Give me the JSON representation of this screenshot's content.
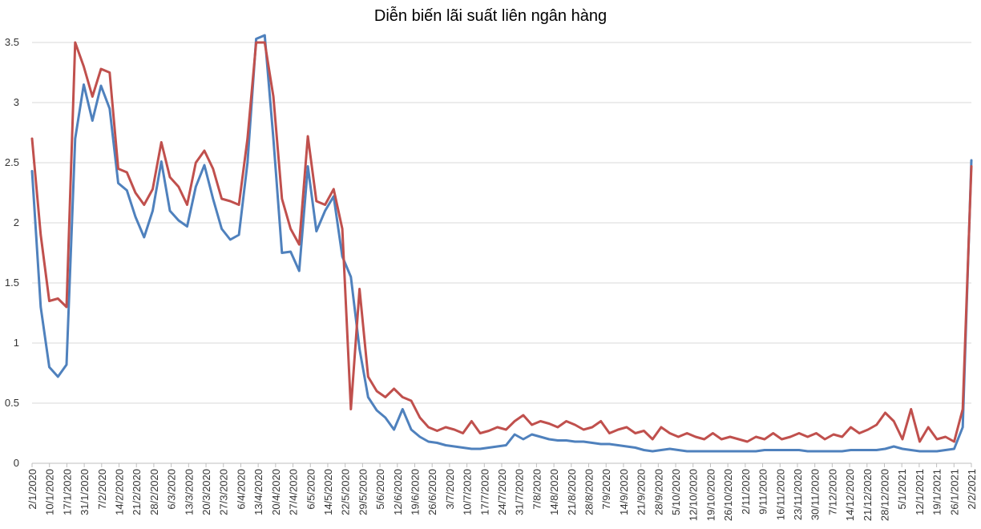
{
  "chart_data": {
    "type": "line",
    "title": "Diễn biến lãi suất liên ngân hàng",
    "xlabel": "",
    "ylabel": "",
    "ylim": [
      0,
      3.5
    ],
    "y_ticks": [
      "0",
      "0.5",
      "1",
      "1.5",
      "2",
      "2.5",
      "3",
      "3.5"
    ],
    "grid": true,
    "legend": "none",
    "x_tick_labels": [
      "2/1/2020",
      "10/1/2020",
      "17/1/2020",
      "31/1/2020",
      "7/2/2020",
      "14/2/2020",
      "21/2/2020",
      "28/2/2020",
      "6/3/2020",
      "13/3/2020",
      "20/3/2020",
      "27/3/2020",
      "6/4/2020",
      "13/4/2020",
      "20/4/2020",
      "27/4/2020",
      "6/5/2020",
      "14/5/2020",
      "22/5/2020",
      "29/5/2020",
      "5/6/2020",
      "12/6/2020",
      "19/6/2020",
      "26/6/2020",
      "3/7/2020",
      "10/7/2020",
      "17/7/2020",
      "24/7/2020",
      "31/7/2020",
      "7/8/2020",
      "14/8/2020",
      "21/8/2020",
      "28/8/2020",
      "7/9/2020",
      "14/9/2020",
      "21/9/2020",
      "28/9/2020",
      "5/10/2020",
      "12/10/2020",
      "19/10/2020",
      "26/10/2020",
      "2/11/2020",
      "9/11/2020",
      "16/11/2020",
      "23/11/2020",
      "30/11/2020",
      "7/12/2020",
      "14/12/2020",
      "21/12/2020",
      "28/12/2020",
      "5/1/2021",
      "12/1/2021",
      "19/1/2021",
      "26/1/2021",
      "2/2/2021"
    ],
    "series": [
      {
        "color": "#4F81BD",
        "values": [
          2.43,
          1.3,
          0.8,
          0.72,
          0.82,
          2.7,
          3.15,
          2.85,
          3.14,
          2.95,
          2.33,
          2.27,
          2.05,
          1.88,
          2.1,
          2.51,
          2.1,
          2.02,
          1.97,
          2.3,
          2.48,
          2.2,
          1.95,
          1.86,
          1.9,
          2.5,
          3.53,
          3.56,
          2.7,
          1.75,
          1.76,
          1.6,
          2.47,
          1.93,
          2.1,
          2.22,
          1.72,
          1.55,
          0.95,
          0.55,
          0.44,
          0.38,
          0.28,
          0.45,
          0.28,
          0.22,
          0.18,
          0.17,
          0.15,
          0.14,
          0.13,
          0.12,
          0.12,
          0.13,
          0.14,
          0.15,
          0.24,
          0.2,
          0.24,
          0.22,
          0.2,
          0.19,
          0.19,
          0.18,
          0.18,
          0.17,
          0.16,
          0.16,
          0.15,
          0.14,
          0.13,
          0.11,
          0.1,
          0.11,
          0.12,
          0.11,
          0.1,
          0.1,
          0.1,
          0.1,
          0.1,
          0.1,
          0.1,
          0.1,
          0.1,
          0.11,
          0.11,
          0.11,
          0.11,
          0.11,
          0.1,
          0.1,
          0.1,
          0.1,
          0.1,
          0.11,
          0.11,
          0.11,
          0.11,
          0.12,
          0.14,
          0.12,
          0.11,
          0.1,
          0.1,
          0.1,
          0.11,
          0.12,
          0.3,
          2.52
        ]
      },
      {
        "color": "#C0504D",
        "values": [
          2.7,
          1.9,
          1.35,
          1.37,
          1.3,
          3.5,
          3.3,
          3.05,
          3.28,
          3.25,
          2.45,
          2.42,
          2.25,
          2.15,
          2.28,
          2.67,
          2.38,
          2.3,
          2.15,
          2.5,
          2.6,
          2.45,
          2.2,
          2.18,
          2.15,
          2.7,
          3.5,
          3.5,
          3.05,
          2.2,
          1.95,
          1.82,
          2.72,
          2.18,
          2.15,
          2.28,
          1.95,
          0.45,
          1.45,
          0.72,
          0.6,
          0.55,
          0.62,
          0.55,
          0.52,
          0.38,
          0.3,
          0.27,
          0.3,
          0.28,
          0.25,
          0.35,
          0.25,
          0.27,
          0.3,
          0.28,
          0.35,
          0.4,
          0.32,
          0.35,
          0.33,
          0.3,
          0.35,
          0.32,
          0.28,
          0.3,
          0.35,
          0.25,
          0.28,
          0.3,
          0.25,
          0.27,
          0.2,
          0.3,
          0.25,
          0.22,
          0.25,
          0.22,
          0.2,
          0.25,
          0.2,
          0.22,
          0.2,
          0.18,
          0.22,
          0.2,
          0.25,
          0.2,
          0.22,
          0.25,
          0.22,
          0.25,
          0.2,
          0.24,
          0.22,
          0.3,
          0.25,
          0.28,
          0.32,
          0.42,
          0.35,
          0.2,
          0.45,
          0.18,
          0.3,
          0.2,
          0.22,
          0.18,
          0.45,
          2.47
        ]
      }
    ]
  }
}
